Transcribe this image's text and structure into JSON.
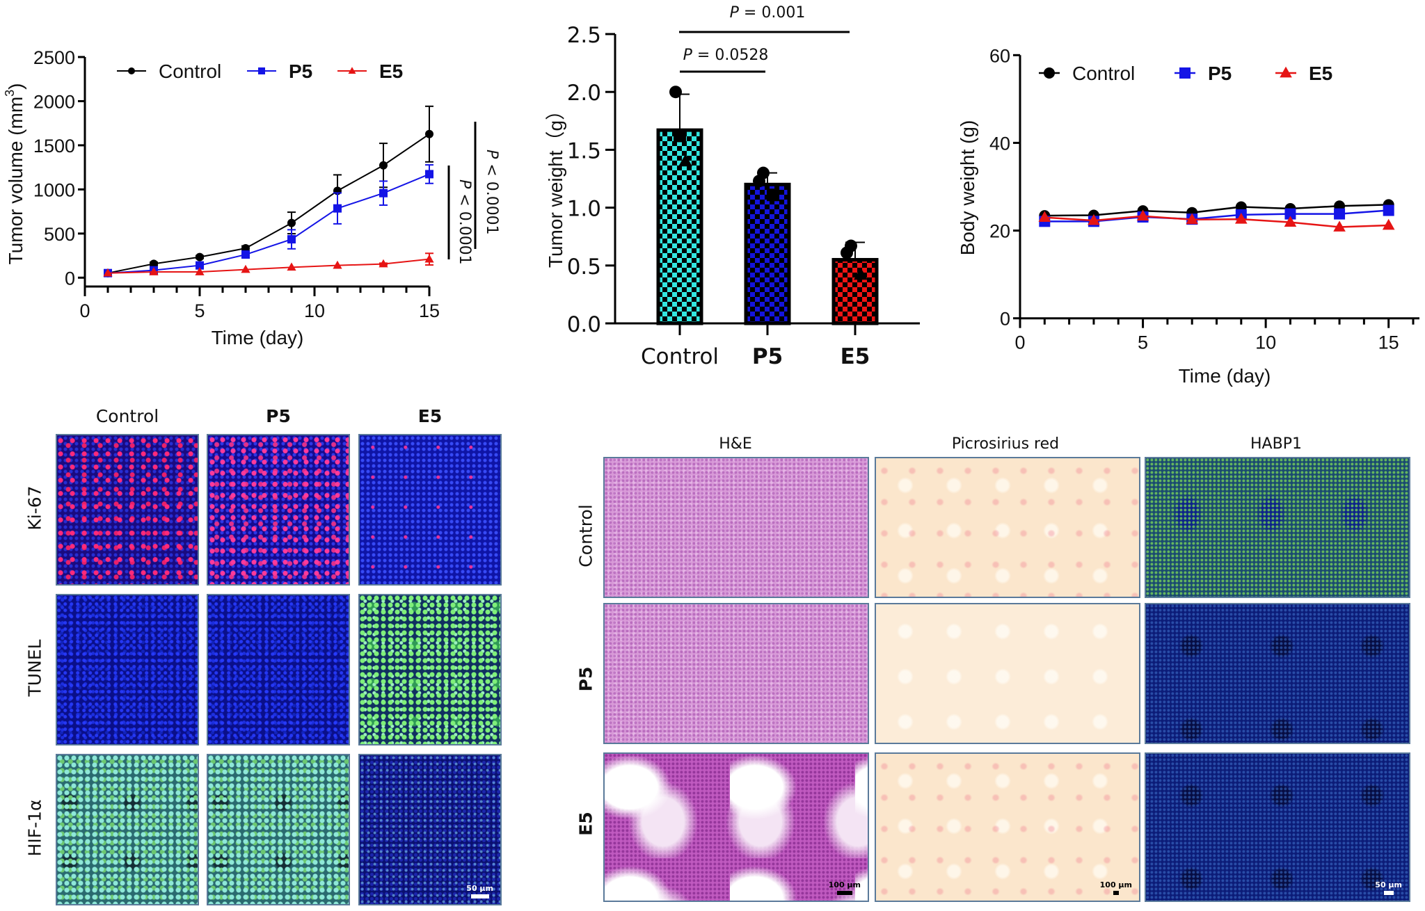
{
  "chart_data": [
    {
      "id": "tumor_volume",
      "type": "line",
      "title": "",
      "xlabel": "Time (day)",
      "ylabel": "Tumor volume (mm³)",
      "ylabel_main": "Tumor volume (mm",
      "ylabel_sup": "3",
      "ylabel_end": ")",
      "xlim": [
        0,
        15
      ],
      "ylim": [
        0,
        2500
      ],
      "xticks": [
        0,
        5,
        10,
        15
      ],
      "yticks": [
        0,
        500,
        1000,
        1500,
        2000,
        2500
      ],
      "grid": false,
      "legend_position": "top",
      "x": [
        1,
        3,
        5,
        7,
        9,
        11,
        13,
        15
      ],
      "series": [
        {
          "name": "Control",
          "color": "#000000",
          "marker": "circle",
          "values": [
            52,
            157,
            234,
            333,
            620,
            984,
            1273,
            1627
          ],
          "error_upper": [
            60,
            175,
            250,
            360,
            742,
            1165,
            1522,
            1942
          ]
        },
        {
          "name": "P5",
          "color": "#1414e6",
          "marker": "square",
          "values": [
            52,
            84,
            139,
            262,
            435,
            785,
            958,
            1173
          ],
          "error_upper": [
            60,
            95,
            150,
            290,
            543,
            960,
            1094,
            1278
          ]
        },
        {
          "name": "E5",
          "color": "#e61414",
          "marker": "triangle",
          "values": [
            52,
            65,
            65,
            92,
            118,
            139,
            155,
            210
          ],
          "error_upper": [
            56,
            70,
            70,
            98,
            125,
            146,
            165,
            276
          ]
        }
      ],
      "annotations": [
        {
          "text_p": "P",
          "text_rest": " < 0.0001",
          "comparison": "Control vs E5"
        },
        {
          "text_p": "P",
          "text_rest": " < 0.0001",
          "comparison": "P5 vs E5"
        }
      ]
    },
    {
      "id": "tumor_weight",
      "type": "bar",
      "title": "",
      "xlabel": "",
      "ylabel": "Tumor weight（g）",
      "ylim": [
        0,
        2.5
      ],
      "yticks": [
        "0.0",
        "0.5",
        "1.0",
        "1.5",
        "2.0",
        "2.5"
      ],
      "grid": false,
      "categories": [
        "Control",
        "P5",
        "E5"
      ],
      "values": [
        1.67,
        1.2,
        0.55
      ],
      "error_upper": [
        1.98,
        1.3,
        0.7
      ],
      "colors": [
        "#33e6e0",
        "#1414dc",
        "#f01414"
      ],
      "points": [
        [
          2.0,
          1.62,
          1.4
        ],
        [
          1.3,
          1.23,
          1.11
        ],
        [
          0.67,
          0.61,
          0.42
        ]
      ],
      "point_markers": [
        [
          "circle",
          "square",
          "triangle"
        ],
        [
          "circle",
          "circle",
          "square"
        ],
        [
          "circle",
          "circle",
          "triangle"
        ]
      ],
      "annotations": [
        {
          "text_p": "P",
          "text_rest": " = 0.001",
          "from": "Control",
          "to": "E5"
        },
        {
          "text_p": "P",
          "text_rest": " = 0.0528",
          "from": "Control",
          "to": "P5"
        }
      ]
    },
    {
      "id": "body_weight",
      "type": "line",
      "title": "",
      "xlabel": "Time (day)",
      "ylabel": "Body weight (g)",
      "xlim": [
        0,
        16
      ],
      "ylim": [
        0,
        60
      ],
      "xticks": [
        0,
        5,
        10,
        15
      ],
      "yticks": [
        0,
        20,
        40,
        60
      ],
      "grid": false,
      "legend_position": "top",
      "x": [
        1,
        3,
        5,
        7,
        9,
        11,
        13,
        15
      ],
      "series": [
        {
          "name": "Control",
          "color": "#000000",
          "marker": "circle",
          "values": [
            23.4,
            23.5,
            24.5,
            24.1,
            25.4,
            25.0,
            25.6,
            25.9
          ]
        },
        {
          "name": "P5",
          "color": "#1414e6",
          "marker": "square",
          "values": [
            22.1,
            22.1,
            23.1,
            22.6,
            23.6,
            23.8,
            23.8,
            24.6
          ]
        },
        {
          "name": "E5",
          "color": "#e61414",
          "marker": "triangle",
          "values": [
            23.0,
            22.3,
            23.3,
            22.5,
            22.6,
            21.9,
            20.8,
            21.2
          ]
        }
      ]
    }
  ],
  "fluorescence_panel": {
    "columns": [
      "Control",
      "P5",
      "E5"
    ],
    "rows": [
      "Ki-67",
      "TUNEL",
      "HIF-1α"
    ],
    "scale_bar": "50 µm"
  },
  "histology_panel": {
    "columns": [
      "H&E",
      "Picrosirius red",
      "HABP1"
    ],
    "rows": [
      "Control",
      "P5",
      "E5"
    ],
    "scale_bars": [
      "100 µm",
      "100 µm",
      "50 µm"
    ]
  }
}
